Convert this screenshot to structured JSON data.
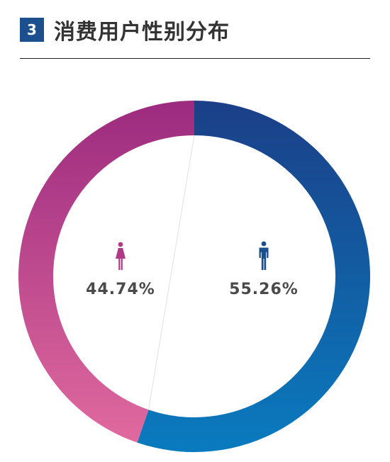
{
  "header": {
    "number": "3",
    "title": "消费用户性别分布"
  },
  "colors": {
    "badge": "#1b4f8e",
    "female_start": "#9c2b7f",
    "female_end": "#e06a9e",
    "male_start": "#1b3f87",
    "male_end": "#0a7bbf"
  },
  "chart_data": {
    "type": "pie",
    "categories": [
      "female",
      "male"
    ],
    "values": [
      44.74,
      55.26
    ],
    "labels": [
      "44.74%",
      "55.26%"
    ],
    "icons": [
      "female-icon",
      "male-icon"
    ]
  }
}
